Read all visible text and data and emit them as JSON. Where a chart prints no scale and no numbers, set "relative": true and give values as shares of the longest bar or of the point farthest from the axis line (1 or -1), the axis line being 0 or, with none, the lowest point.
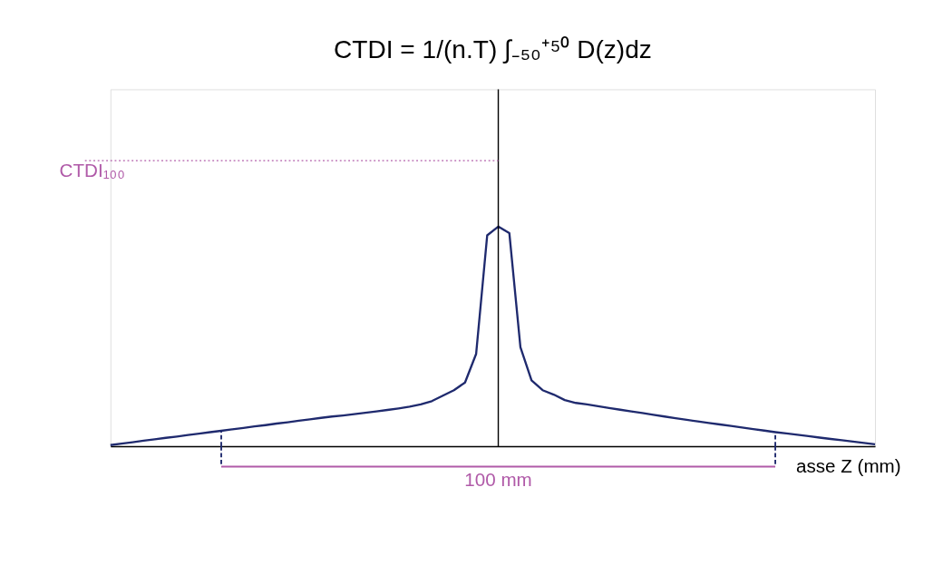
{
  "chart_data": {
    "type": "line",
    "title": "CTDI = 1/(n.T) ∫₋₅₀⁺⁵⁰ D(z)dz",
    "xlabel": "asse Z (mm)",
    "relative": true,
    "tick_labels": false,
    "grid": false,
    "categories": [
      null,
      null,
      null,
      null,
      null,
      null,
      null,
      null,
      null,
      null,
      null,
      null,
      null,
      null,
      null,
      null,
      null,
      null,
      null,
      null,
      null,
      null,
      null,
      null,
      null,
      null,
      null,
      null,
      null,
      null,
      null,
      null,
      null,
      null,
      null,
      null,
      null,
      null,
      null,
      null,
      null,
      null,
      null,
      null,
      null,
      null,
      null,
      null,
      null,
      null,
      null,
      null,
      null,
      null,
      null,
      null,
      null,
      null,
      null,
      null,
      null,
      null,
      null,
      null,
      null,
      null,
      null,
      null,
      null,
      null
    ],
    "series": [
      {
        "color": "#1f2a6e",
        "values": [
          0.005,
          0.012,
          0.018,
          0.025,
          0.031,
          0.038,
          0.044,
          0.051,
          0.057,
          0.064,
          0.07,
          0.077,
          0.083,
          0.09,
          0.096,
          0.103,
          0.109,
          0.116,
          0.122,
          0.129,
          0.135,
          0.14,
          0.146,
          0.152,
          0.158,
          0.165,
          0.172,
          0.18,
          0.19,
          0.205,
          0.23,
          0.255,
          0.29,
          0.42,
          0.96,
          1,
          0.97,
          0.45,
          0.3,
          0.255,
          0.235,
          0.21,
          0.197,
          0.19,
          0.182,
          0.174,
          0.166,
          0.158,
          0.151,
          0.143,
          0.135,
          0.127,
          0.12,
          0.113,
          0.106,
          0.099,
          0.092,
          0.085,
          0.078,
          0.071,
          0.064,
          0.058,
          0.052,
          0.046,
          0.039,
          0.033,
          0.027,
          0.021,
          0.015,
          0.009
        ]
      }
    ],
    "ref_lines": [
      {
        "axis": "y",
        "value": 1.3,
        "label": "CTDI₁₀₀",
        "color": "#b05aa8",
        "line_style": "dotted"
      }
    ],
    "annotations": [
      "100 mm"
    ]
  }
}
